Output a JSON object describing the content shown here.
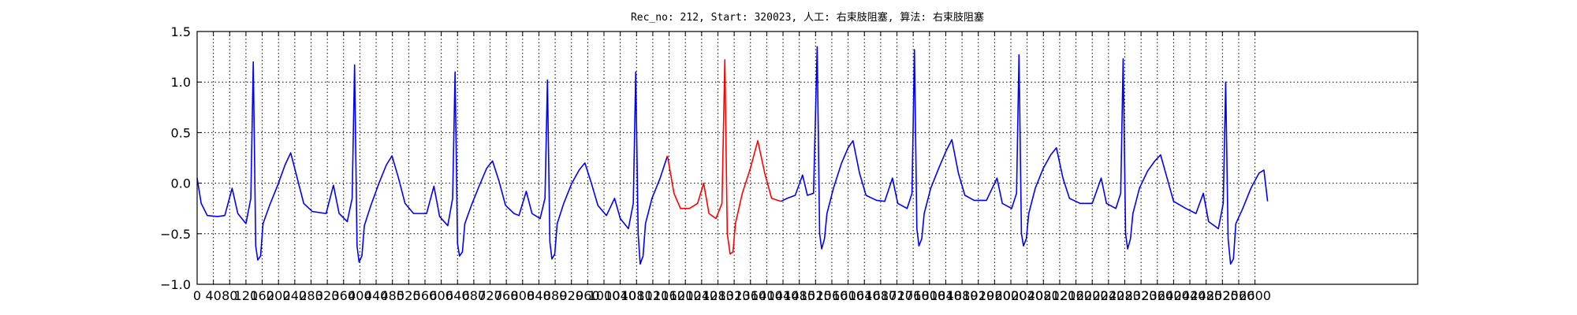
{
  "chart_data": {
    "type": "line",
    "title": "Rec_no: 212, Start: 320023, 人工: 右束肢阻塞, 算法: 右束肢阻塞",
    "xlim": [
      0,
      3000
    ],
    "ylim": [
      -1.0,
      1.5
    ],
    "xticks": [
      0,
      40,
      80,
      120,
      160,
      200,
      240,
      280,
      320,
      360,
      400,
      440,
      480,
      520,
      560,
      600,
      640,
      680,
      720,
      760,
      800,
      840,
      880,
      920,
      960,
      1000,
      1040,
      1080,
      1120,
      1160,
      1200,
      1240,
      1280,
      1320,
      1360,
      1400,
      1440,
      1480,
      1520,
      1560,
      1600,
      1640,
      1680,
      1720,
      1760,
      1800,
      1840,
      1880,
      1920,
      1960,
      2000,
      2040,
      2080,
      2120,
      2160,
      2200,
      2240,
      2280,
      2320,
      2360,
      2400,
      2440,
      2480,
      2520,
      2560,
      2600
    ],
    "yticks": [
      {
        "value": -1.0,
        "label": "−1.0"
      },
      {
        "value": -0.5,
        "label": "−0.5"
      },
      {
        "value": 0.0,
        "label": "0.0"
      },
      {
        "value": 0.5,
        "label": "0.5"
      },
      {
        "value": 1.0,
        "label": "1.0"
      },
      {
        "value": 1.5,
        "label": "1.5"
      }
    ],
    "grid": true,
    "series": [
      {
        "color": "#0000ff",
        "x": [
          0,
          10,
          25,
          50,
          68,
          86,
          100,
          120,
          132,
          138,
          144,
          149,
          156,
          162,
          178,
          198,
          216,
          230,
          246,
          262,
          283,
          317,
          335,
          349,
          369,
          381,
          387,
          393,
          398,
          405,
          411,
          427,
          447,
          465,
          479,
          495,
          511,
          532,
          564,
          582,
          596,
          616,
          628,
          634,
          640,
          645,
          652,
          658,
          674,
          694,
          712,
          726,
          742,
          758,
          779,
          791,
          809,
          823,
          843,
          855,
          861,
          867,
          872,
          879,
          885,
          901,
          921,
          939,
          953,
          969,
          985,
          1006,
          1026,
          1040,
          1060,
          1072,
          1078,
          1084,
          1089,
          1096,
          1102,
          1118,
          1138,
          1156,
          1172,
          1188,
          1210,
          1230,
          1245,
          1258,
          1275,
          1290,
          1297,
          1303,
          1310,
          1317,
          1323,
          1340,
          1360,
          1378,
          1395,
          1412,
          1435,
          1450,
          1470,
          1488,
          1500,
          1515,
          1524,
          1530,
          1535,
          1542,
          1548,
          1564,
          1584,
          1600,
          1612,
          1628,
          1644,
          1670,
          1690,
          1709,
          1722,
          1745,
          1757,
          1763,
          1769,
          1774,
          1781,
          1787,
          1803,
          1823,
          1841,
          1855,
          1871,
          1887,
          1910,
          1940,
          1966,
          1979,
          2002,
          2014,
          2020,
          2026,
          2031,
          2038,
          2044,
          2060,
          2080,
          2098,
          2112,
          2128,
          2144,
          2170,
          2200,
          2222,
          2235,
          2258,
          2270,
          2276,
          2282,
          2287,
          2294,
          2300,
          2316,
          2336,
          2354,
          2368,
          2384,
          2400,
          2430,
          2455,
          2473,
          2486,
          2510,
          2522,
          2528,
          2534,
          2540,
          2547,
          2553,
          2570,
          2590,
          2610,
          2622,
          2631
        ],
        "values": [
          0.05,
          -0.2,
          -0.32,
          -0.33,
          -0.32,
          -0.05,
          -0.3,
          -0.4,
          -0.15,
          1.2,
          -0.62,
          -0.76,
          -0.72,
          -0.4,
          -0.22,
          -0.02,
          0.18,
          0.3,
          0.05,
          -0.2,
          -0.28,
          -0.3,
          -0.02,
          -0.3,
          -0.38,
          -0.15,
          1.17,
          -0.62,
          -0.78,
          -0.72,
          -0.42,
          -0.22,
          0.0,
          0.18,
          0.27,
          0.05,
          -0.2,
          -0.3,
          -0.3,
          -0.03,
          -0.33,
          -0.42,
          -0.15,
          1.1,
          -0.6,
          -0.72,
          -0.68,
          -0.4,
          -0.22,
          -0.02,
          0.15,
          0.22,
          0.02,
          -0.22,
          -0.3,
          -0.32,
          -0.08,
          -0.3,
          -0.35,
          -0.15,
          1.02,
          -0.58,
          -0.75,
          -0.7,
          -0.4,
          -0.2,
          0.0,
          0.13,
          0.2,
          0.0,
          -0.22,
          -0.32,
          -0.15,
          -0.35,
          -0.45,
          -0.2,
          1.1,
          -0.5,
          -0.8,
          -0.72,
          -0.4,
          -0.15,
          0.05,
          0.27,
          null,
          null,
          null,
          null,
          null,
          null,
          null,
          null,
          null,
          null,
          null,
          null,
          null,
          null,
          null,
          null,
          null,
          null,
          -0.18,
          -0.15,
          -0.12,
          0.08,
          -0.12,
          -0.1,
          1.35,
          -0.5,
          -0.65,
          -0.55,
          -0.3,
          -0.05,
          0.2,
          0.35,
          0.42,
          0.1,
          -0.12,
          -0.17,
          -0.18,
          0.05,
          -0.2,
          -0.25,
          -0.1,
          1.32,
          -0.45,
          -0.62,
          -0.55,
          -0.3,
          -0.05,
          0.15,
          0.32,
          0.43,
          0.1,
          -0.12,
          -0.17,
          -0.17,
          0.05,
          -0.2,
          -0.25,
          -0.1,
          1.27,
          -0.5,
          -0.62,
          -0.55,
          -0.3,
          -0.05,
          0.15,
          0.28,
          0.35,
          0.05,
          -0.15,
          -0.2,
          -0.2,
          0.05,
          -0.2,
          -0.25,
          -0.1,
          1.23,
          -0.5,
          -0.65,
          -0.55,
          -0.3,
          -0.05,
          0.12,
          0.22,
          0.28,
          0.05,
          -0.18,
          -0.25,
          -0.3,
          -0.1,
          -0.38,
          -0.45,
          -0.2,
          1.0,
          -0.55,
          -0.8,
          -0.75,
          -0.4,
          -0.25,
          -0.05,
          0.1,
          0.13,
          -0.18
        ]
      },
      {
        "color": "#ff0000",
        "x": [
          1156,
          1172,
          1188,
          1210,
          1230,
          1245,
          1258,
          1275,
          1290,
          1297,
          1303,
          1310,
          1317,
          1323,
          1340,
          1360,
          1378,
          1395,
          1412,
          1435
        ],
        "values": [
          0.27,
          -0.1,
          -0.25,
          -0.25,
          -0.2,
          0.0,
          -0.3,
          -0.35,
          -0.2,
          1.22,
          -0.5,
          -0.7,
          -0.68,
          -0.4,
          -0.1,
          0.15,
          0.42,
          0.1,
          -0.15,
          -0.18
        ]
      }
    ]
  }
}
